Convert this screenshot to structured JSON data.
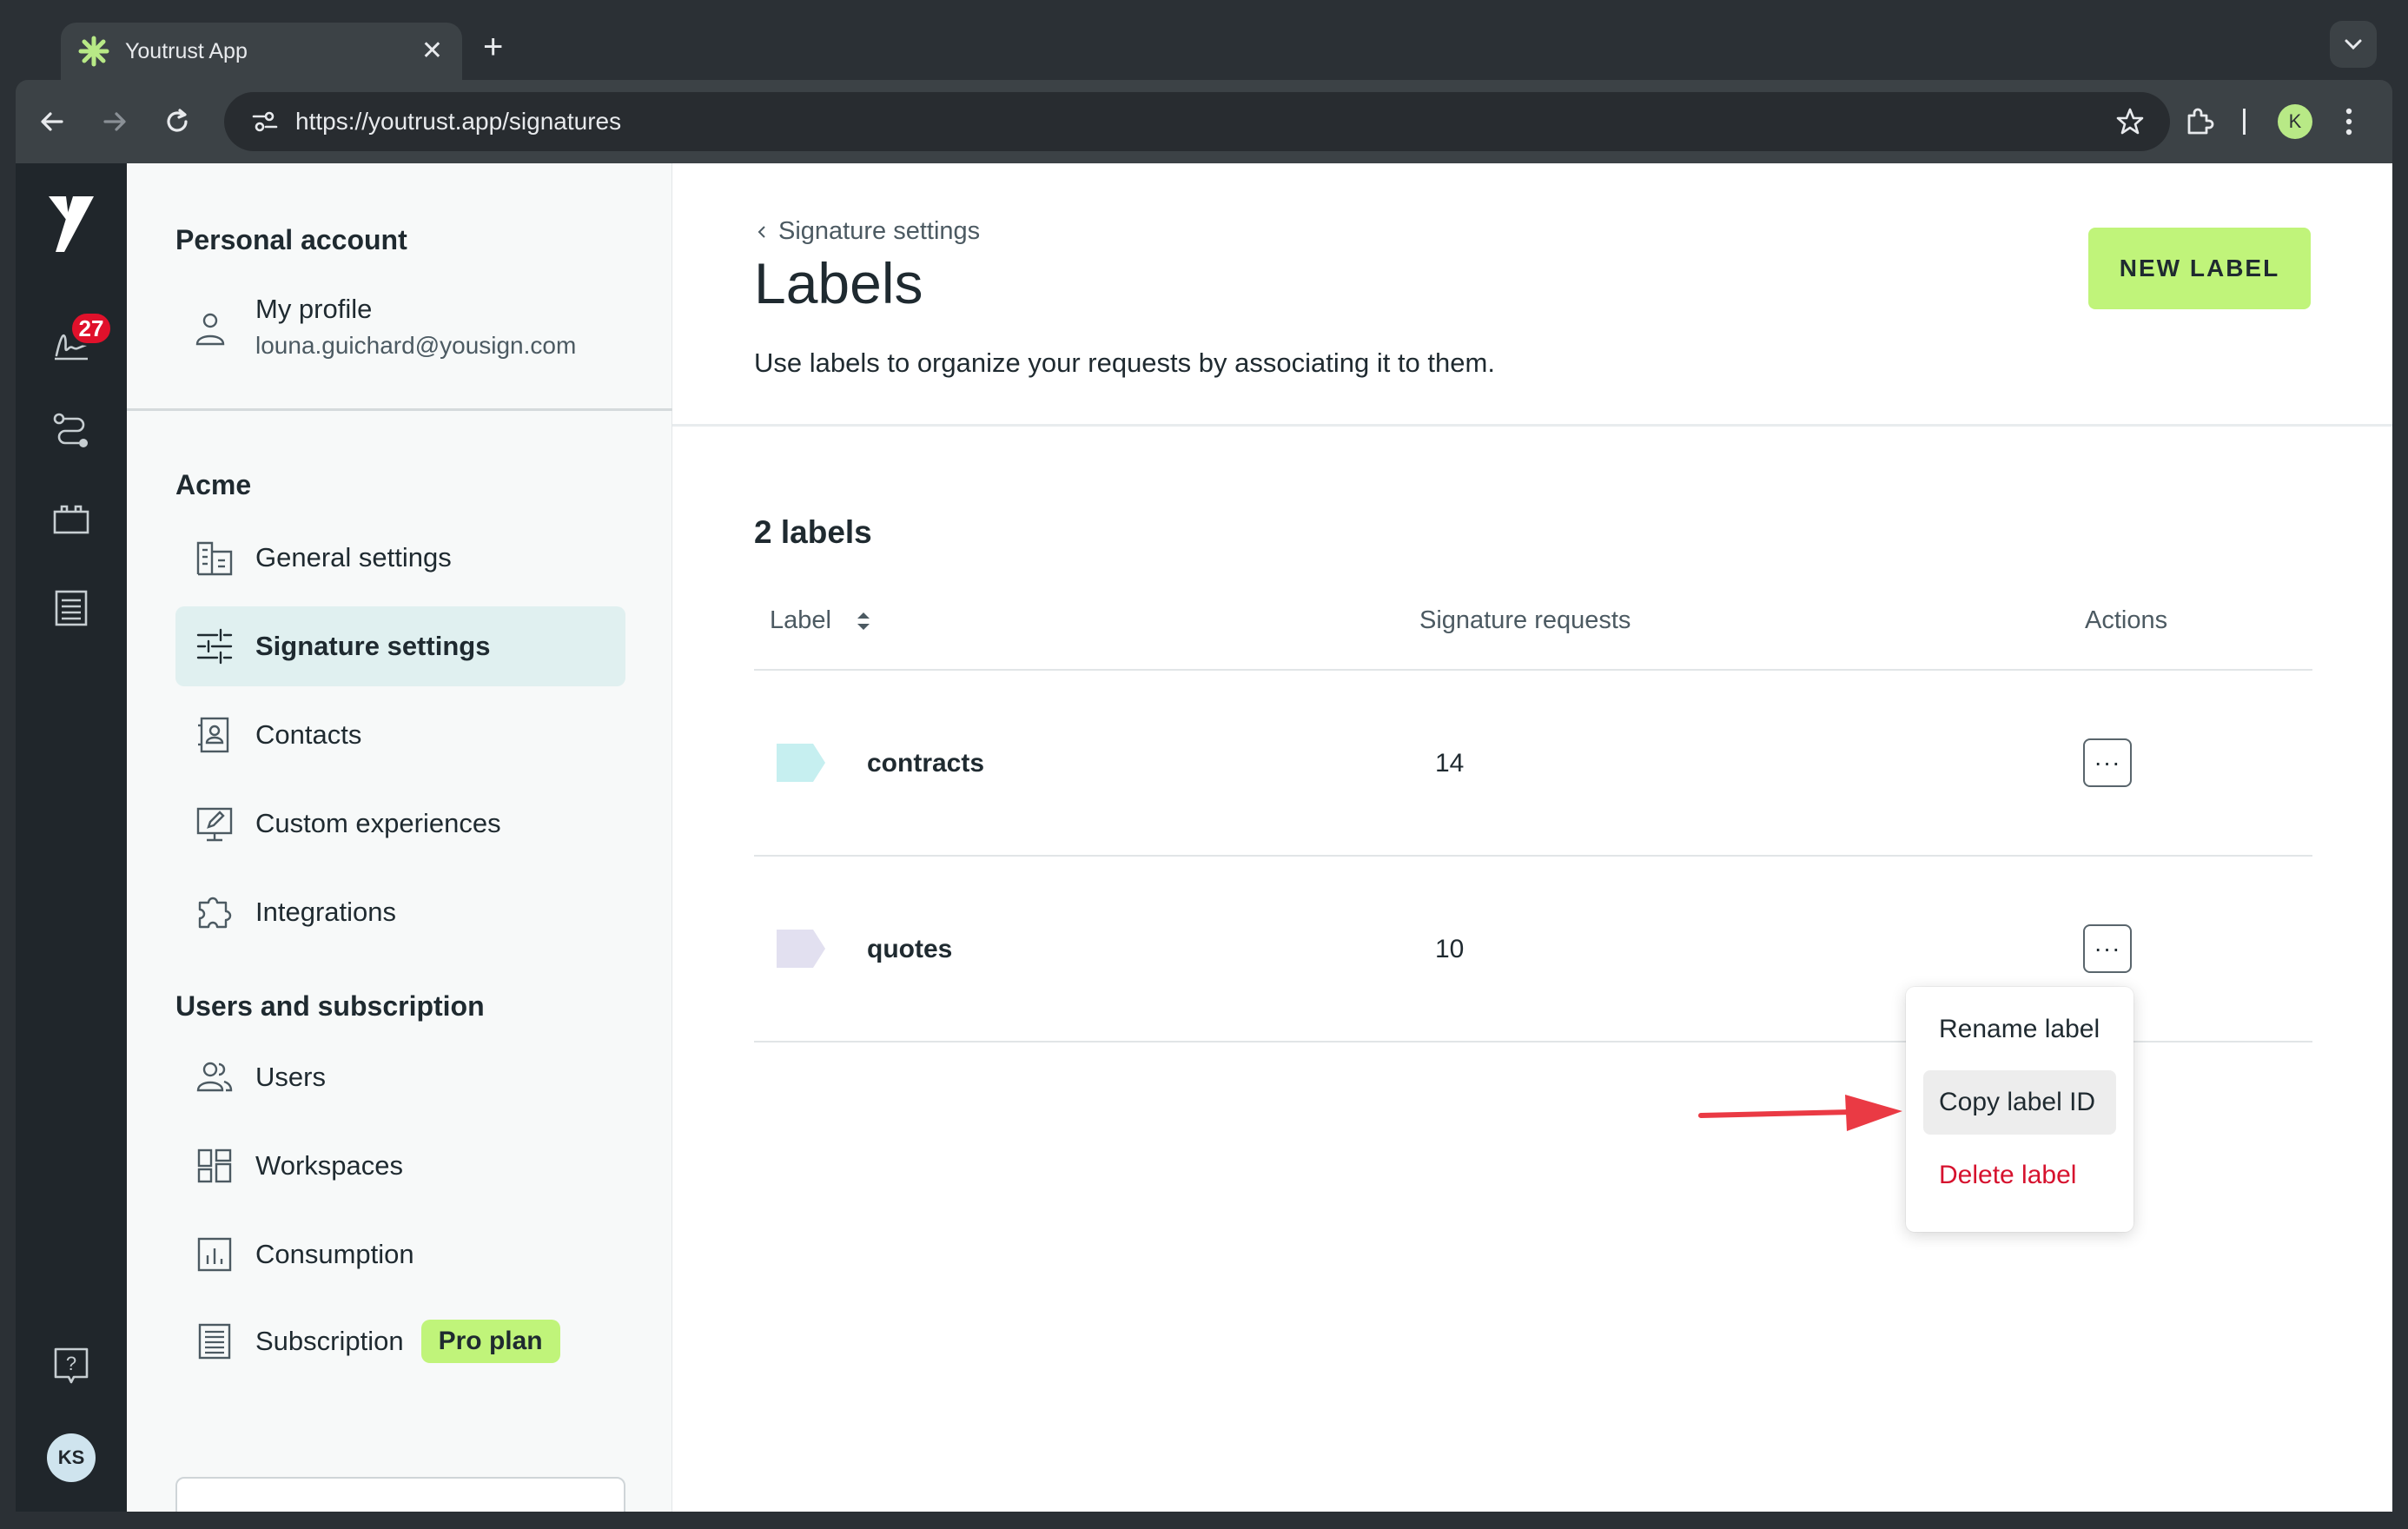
{
  "browser": {
    "tab_title": "Youtrust App",
    "url": "https://youtrust.app/signatures",
    "profile_initial": "K"
  },
  "rail": {
    "notification_count": "27",
    "user_initials": "KS"
  },
  "sidebar": {
    "personal_heading": "Personal account",
    "profile_name": "My profile",
    "profile_email": "louna.guichard@yousign.com",
    "org_heading": "Acme",
    "org_items": [
      {
        "label": "General settings"
      },
      {
        "label": "Signature settings"
      },
      {
        "label": "Contacts"
      },
      {
        "label": "Custom experiences"
      },
      {
        "label": "Integrations"
      }
    ],
    "users_heading": "Users and subscription",
    "users_items": [
      {
        "label": "Users"
      },
      {
        "label": "Workspaces"
      },
      {
        "label": "Consumption"
      },
      {
        "label": "Subscription"
      }
    ],
    "plan_badge": "Pro plan"
  },
  "main": {
    "breadcrumb": "Signature settings",
    "title": "Labels",
    "description": "Use labels to organize your requests by associating it to them.",
    "new_label_button": "NEW LABEL",
    "count_text": "2 labels",
    "columns": {
      "label": "Label",
      "requests": "Signature requests",
      "actions": "Actions"
    },
    "rows": [
      {
        "name": "contracts",
        "count": "14",
        "color": "#c6eff0"
      },
      {
        "name": "quotes",
        "count": "10",
        "color": "#e2e0f0"
      }
    ],
    "menu": {
      "rename": "Rename label",
      "copy": "Copy label ID",
      "delete": "Delete label"
    }
  },
  "colors": {
    "accent": "#c0f47a",
    "danger": "#d6122e",
    "annotation_arrow": "#ea3a44"
  }
}
